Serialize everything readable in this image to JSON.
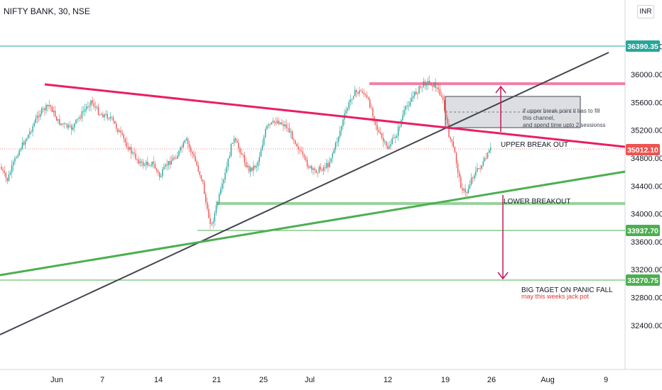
{
  "header": {
    "title": "NIFTY BANK, 30, NSE",
    "currency": "INR"
  },
  "chart_data": {
    "type": "candlestick",
    "y_ticks": [
      "36400.00",
      "36000.00",
      "35600.00",
      "35200.00",
      "34800.00",
      "34400.00",
      "34000.00",
      "33600.00",
      "33200.00",
      "32800.00",
      "32400.00"
    ],
    "x_ticks": [
      "Jun",
      "7",
      "14",
      "21",
      "25",
      "Jul",
      "12",
      "19",
      "26",
      "Aug",
      "9"
    ],
    "price_tags": [
      {
        "name": "upper-level",
        "value": "36390.35",
        "color": "#26a69a"
      },
      {
        "name": "last-price",
        "value": "35012.10",
        "color": "#ef5350"
      },
      {
        "name": "support-1",
        "value": "33937.70",
        "color": "#4caf50"
      },
      {
        "name": "support-2",
        "value": "33270.75",
        "color": "#4caf50"
      }
    ],
    "annotations": {
      "upper_break_out": "UPPER BREAK OUT",
      "lower_breakout": "LOWER BREAKOUT",
      "channel_note_1": "if upper break point it has to fill",
      "channel_note_2": "this channel,",
      "channel_note_3": "and spend time upto 2 sessionss",
      "big_target": "BIG TAGET ON PANIC FALL",
      "jackpot": "may this weeks jack pot"
    },
    "colors": {
      "up": "#26a69a",
      "down": "#ef5350",
      "resistance": "#e91e63",
      "support_trend": "#4caf50",
      "black_trend": "#434651",
      "teal_level": "#26a69a"
    }
  }
}
